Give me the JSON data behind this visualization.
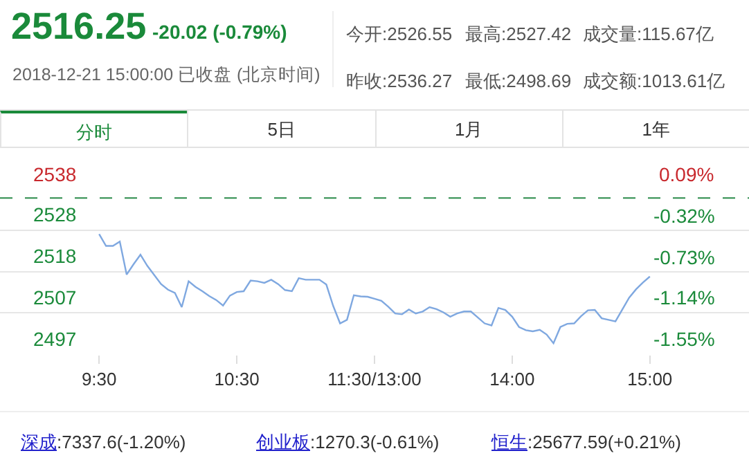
{
  "chart_data": {
    "type": "line",
    "title": "2516.25",
    "subtitle": "-20.02 (-0.79%)",
    "annotations": [
      "2018-12-21 15:00:00 已收盘 (北京时间)",
      "今开:2526.55",
      "最高:2527.42",
      "成交量:115.67亿",
      "昨收:2536.27",
      "最低:2498.69",
      "成交额:1013.61亿",
      "分时",
      "5日",
      "1月",
      "1年",
      "深成:7337.6(-1.20%)",
      "创业板:1270.3(-0.61%)",
      "恒生:25677.59(+0.21%)"
    ],
    "categories": [
      "9:30",
      null,
      null,
      null,
      null,
      null,
      null,
      null,
      null,
      null,
      null,
      null,
      null,
      null,
      null,
      null,
      null,
      null,
      null,
      null,
      "10:30",
      null,
      null,
      null,
      null,
      null,
      null,
      null,
      null,
      null,
      null,
      null,
      null,
      null,
      null,
      null,
      null,
      null,
      null,
      null,
      "11:30/13:00",
      null,
      null,
      null,
      null,
      null,
      null,
      null,
      null,
      null,
      null,
      null,
      null,
      null,
      null,
      null,
      null,
      null,
      null,
      null,
      "14:00",
      null,
      null,
      null,
      null,
      null,
      null,
      null,
      null,
      null,
      null,
      null,
      null,
      null,
      null,
      null,
      null,
      null,
      null,
      null,
      "15:00"
    ],
    "values": [
      2527.2,
      2524.2,
      2524.2,
      2525.3,
      2517,
      2519.6,
      2522.0,
      2519.2,
      2516.9,
      2514.6,
      2513.2,
      2512.4,
      2508.8,
      2515.3,
      2513.9,
      2512.8,
      2511.6,
      2510.6,
      2509.2,
      2511.7,
      2512.6,
      2512.8,
      2515.5,
      2515.3,
      2514.9,
      2515.7,
      2514.6,
      2513.1,
      2512.8,
      2516.1,
      2515.7,
      2515.7,
      2515.7,
      2514.5,
      2509.1,
      2504.7,
      2505.6,
      2511.8,
      2511.5,
      2511.4,
      2510.9,
      2510.4,
      2508.9,
      2507.2,
      2507.0,
      2508.2,
      2507.2,
      2507.7,
      2508.8,
      2508.3,
      2507.5,
      2506.4,
      2507.2,
      2507.7,
      2507.7,
      2506.2,
      2504.7,
      2504.2,
      2508.6,
      2508.1,
      2506.4,
      2503.8,
      2503.0,
      2502.7,
      2503.1,
      2501.9,
      2499.7,
      2503.8,
      2504.6,
      2504.7,
      2506.5,
      2508.0,
      2508.1,
      2506.0,
      2505.6,
      2505.2,
      2508.2,
      2511.2,
      2513.3,
      2515.0,
      2516.5
    ],
    "color": "#7fa8e0",
    "ylim": [
      2496.96,
      2538.4
    ],
    "yticks": [
      {
        "value": 2538.4,
        "label": "2538"
      },
      {
        "value": 2528.15,
        "label": "2528"
      },
      {
        "value": 2517.75,
        "label": "2518"
      },
      {
        "value": 2507.36,
        "label": "2507"
      },
      {
        "value": 2496.96,
        "label": "2497"
      }
    ],
    "y2lim": [
      -1.55,
      0.09
    ],
    "y2ticks": [
      {
        "value": 0.09,
        "label": "0.09%"
      },
      {
        "value": -0.32,
        "label": "-0.32%"
      },
      {
        "value": -0.73,
        "label": "-0.73%"
      },
      {
        "value": -1.14,
        "label": "-1.14%"
      },
      {
        "value": -1.55,
        "label": "-1.55%"
      }
    ],
    "ref_lines": [
      {
        "axis": "y",
        "value": 2536.27,
        "color": "#2a8a4a",
        "line_style": "dashed"
      }
    ],
    "grid": "y"
  }
}
